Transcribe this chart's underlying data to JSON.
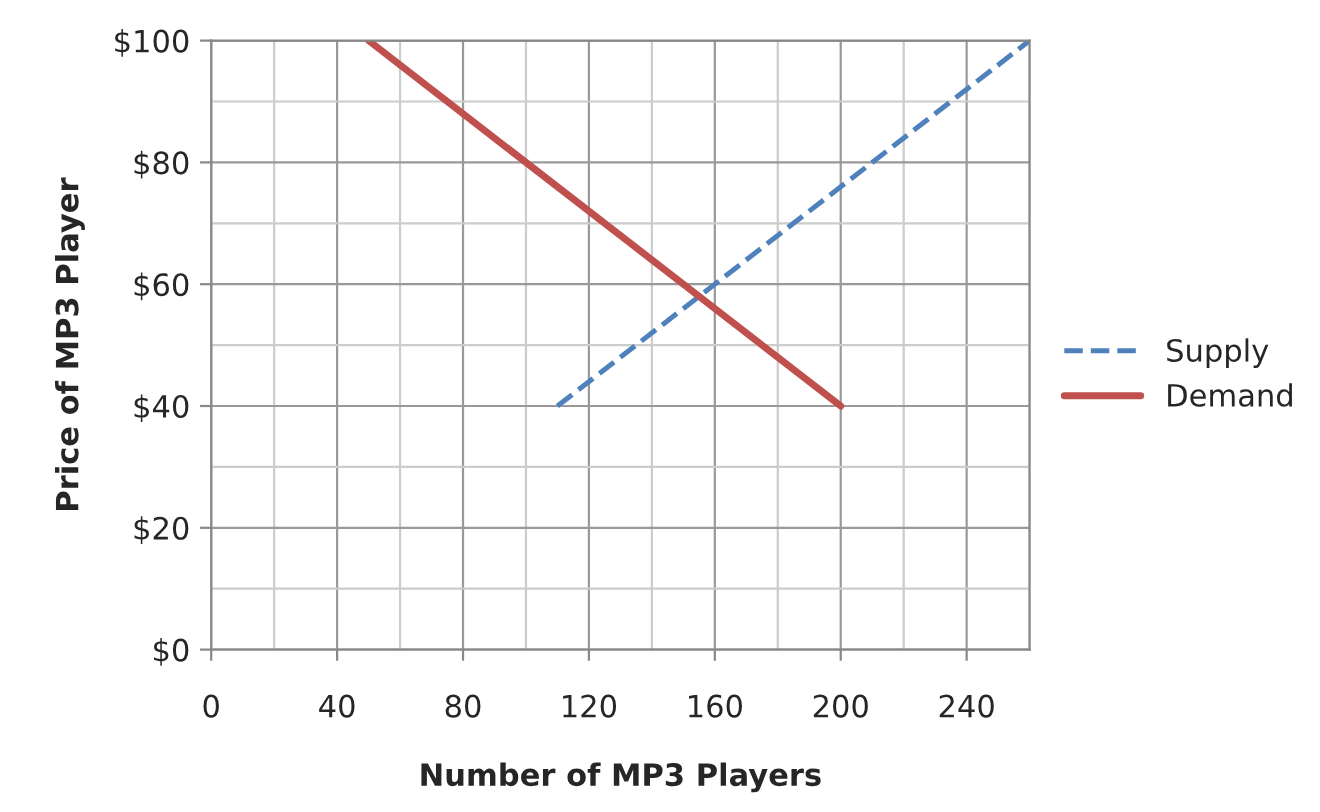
{
  "chart_data": {
    "type": "line",
    "xlabel": "Number of MP3 Players",
    "ylabel": "Price of MP3 Player",
    "series": [
      {
        "name": "Supply",
        "color": "#4f81bd",
        "line_style": "dashed",
        "x": [
          110,
          260
        ],
        "values": [
          40,
          100
        ]
      },
      {
        "name": "Demand",
        "color": "#c0504d",
        "line_style": "solid",
        "x": [
          50,
          200
        ],
        "values": [
          100,
          40
        ]
      }
    ],
    "xlim": [
      0,
      260
    ],
    "xticks": [
      0,
      40,
      80,
      120,
      160,
      200,
      240
    ],
    "ylim": [
      0,
      100
    ],
    "yticks": [
      {
        "value": 0,
        "label": "$0"
      },
      {
        "value": 20,
        "label": "$20"
      },
      {
        "value": 40,
        "label": "$40"
      },
      {
        "value": 60,
        "label": "$60"
      },
      {
        "value": 80,
        "label": "$80"
      },
      {
        "value": 100,
        "label": "$100"
      }
    ],
    "grid": true,
    "legend": "right",
    "marker": "none"
  }
}
